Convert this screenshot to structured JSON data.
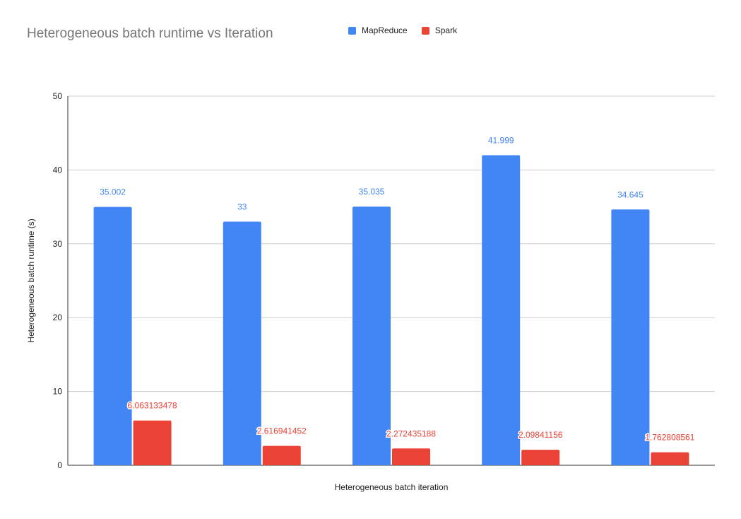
{
  "chart_data": {
    "type": "bar",
    "title": "Heterogeneous batch runtime vs Iteration",
    "xlabel": "Heterogeneous batch iteration",
    "ylabel": "Heterogeneous batch runtime (s)",
    "categories": [
      "",
      "",
      "",
      "",
      ""
    ],
    "ylim": [
      0,
      50
    ],
    "yticks": [
      0,
      10,
      20,
      30,
      40,
      50
    ],
    "grid": true,
    "legend_position": "top",
    "series": [
      {
        "name": "MapReduce",
        "color": "#4285f4",
        "values": [
          35.002,
          33,
          35.035,
          41.999,
          34.645
        ],
        "labels": [
          "35.002",
          "33",
          "35.035",
          "41.999",
          "34.645"
        ]
      },
      {
        "name": "Spark",
        "color": "#ea4335",
        "values": [
          6.063133478,
          2.616941452,
          2.272435188,
          2.09841156,
          1.762808561
        ],
        "labels": [
          "6.063133478",
          "2.616941452",
          "2.272435188",
          "2.09841156",
          "1.762808561"
        ]
      }
    ]
  }
}
